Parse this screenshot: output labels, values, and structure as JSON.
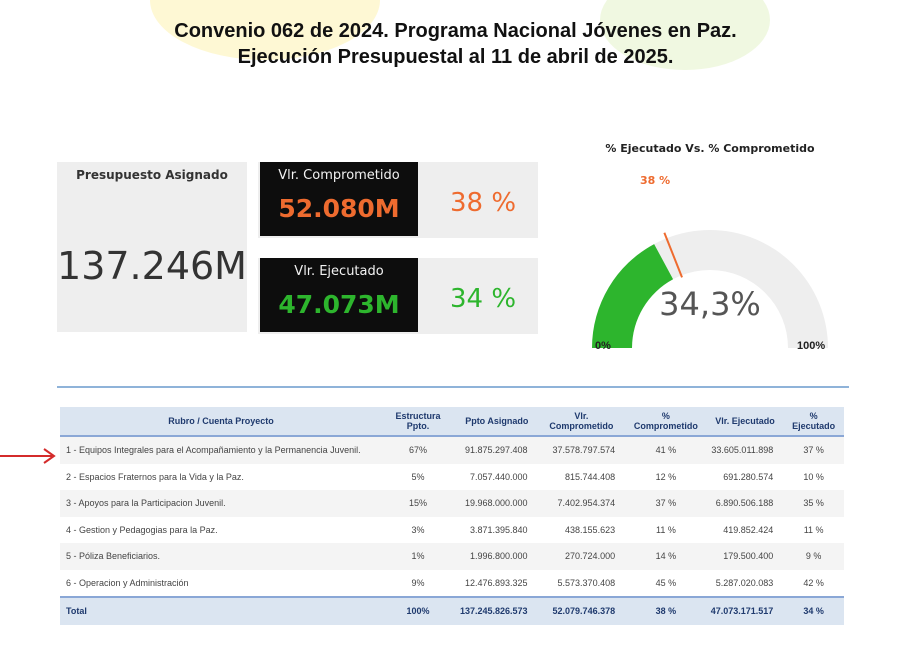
{
  "header": {
    "title_line1": "Convenio 062 de 2024. Programa Nacional Jóvenes en Paz.",
    "title_line2": "Ejecución Presupuestal al 11 de abril de 2025."
  },
  "kpi": {
    "asignado_label": "Presupuesto Asignado",
    "asignado_value": "137.246M",
    "comprometido_label": "Vlr. Comprometido",
    "comprometido_value": "52.080M",
    "comprometido_pct": "38 %",
    "ejecutado_label": "Vlr. Ejecutado",
    "ejecutado_value": "47.073M",
    "ejecutado_pct": "34 %"
  },
  "gauge": {
    "title": "% Ejecutado Vs. % Comprometido",
    "value_label": "34,3%",
    "value": 0.343,
    "target_label": "38 %",
    "target": 0.38,
    "min_label": "0%",
    "max_label": "100%"
  },
  "colors": {
    "green": "#2db52d",
    "orange": "#ee6b2f",
    "navy": "#1f3a6e",
    "arrow": "#d42b2b"
  },
  "table": {
    "headers": [
      "Rubro / Cuenta Proyecto",
      "Estructura Ppto.",
      "Ppto Asignado",
      "Vlr. Comprometido",
      "% Comprometido",
      "Vlr. Ejecutado",
      "% Ejecutado"
    ],
    "rows": [
      [
        "1 - Equipos Integrales para el Acompañamiento y la Permanencia Juvenil.",
        "67%",
        "91.875.297.408",
        "37.578.797.574",
        "41 %",
        "33.605.011.898",
        "37 %"
      ],
      [
        "2 - Espacios Fraternos para la Vida y la Paz.",
        "5%",
        "7.057.440.000",
        "815.744.408",
        "12 %",
        "691.280.574",
        "10 %"
      ],
      [
        "3 - Apoyos para la Participacion Juvenil.",
        "15%",
        "19.968.000.000",
        "7.402.954.374",
        "37 %",
        "6.890.506.188",
        "35 %"
      ],
      [
        "4 - Gestion y Pedagogias para la Paz.",
        "3%",
        "3.871.395.840",
        "438.155.623",
        "11 %",
        "419.852.424",
        "11 %"
      ],
      [
        "5 - Póliza Beneficiarios.",
        "1%",
        "1.996.800.000",
        "270.724.000",
        "14 %",
        "179.500.400",
        "9 %"
      ],
      [
        "6 - Operacion y Administración",
        "9%",
        "12.476.893.325",
        "5.573.370.408",
        "45 %",
        "5.287.020.083",
        "42 %"
      ]
    ],
    "total": [
      "Total",
      "100%",
      "137.245.826.573",
      "52.079.746.378",
      "38 %",
      "47.073.171.517",
      "34 %"
    ]
  }
}
